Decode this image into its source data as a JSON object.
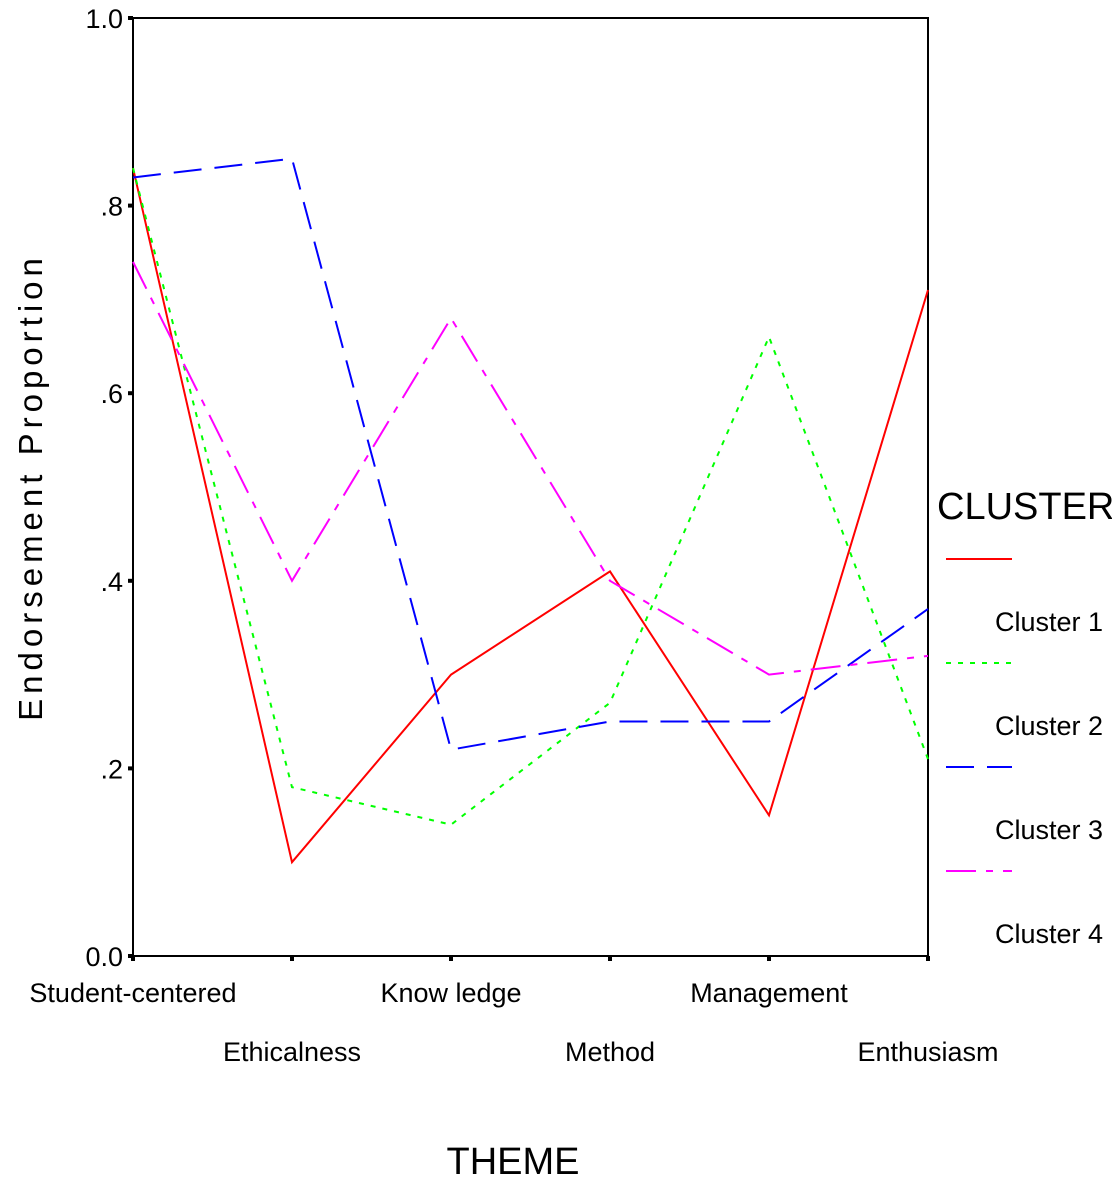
{
  "chart_data": {
    "type": "line",
    "xlabel": "THEME",
    "ylabel": "Endorsement Proportion",
    "categories": [
      "Student-centered",
      "Ethicalness",
      "Know ledge",
      "Method",
      "Management",
      "Enthusiasm"
    ],
    "ylim": [
      0,
      1
    ],
    "yticks": [
      0,
      0.2,
      0.4,
      0.6,
      0.8,
      1.0
    ],
    "ytick_labels": [
      "0.0",
      ".2",
      ".4",
      ".6",
      ".8",
      "1.0"
    ],
    "grid": false,
    "legend": {
      "title": "CLUSTER",
      "placement": "right"
    },
    "series": [
      {
        "name": "Cluster 1",
        "color": "#ff0000",
        "dash": "solid",
        "values": [
          0.84,
          0.1,
          0.3,
          0.41,
          0.15,
          0.71
        ]
      },
      {
        "name": "Cluster 2",
        "color": "#00ff00",
        "dash": "dotted",
        "values": [
          0.84,
          0.18,
          0.14,
          0.27,
          0.66,
          0.21
        ]
      },
      {
        "name": "Cluster 3",
        "color": "#0000ff",
        "dash": "dashed",
        "values": [
          0.83,
          0.85,
          0.22,
          0.25,
          0.25,
          0.37
        ]
      },
      {
        "name": "Cluster 4",
        "color": "#ff00ff",
        "dash": "dash-dot",
        "values": [
          0.74,
          0.4,
          0.68,
          0.4,
          0.3,
          0.32
        ]
      }
    ]
  }
}
